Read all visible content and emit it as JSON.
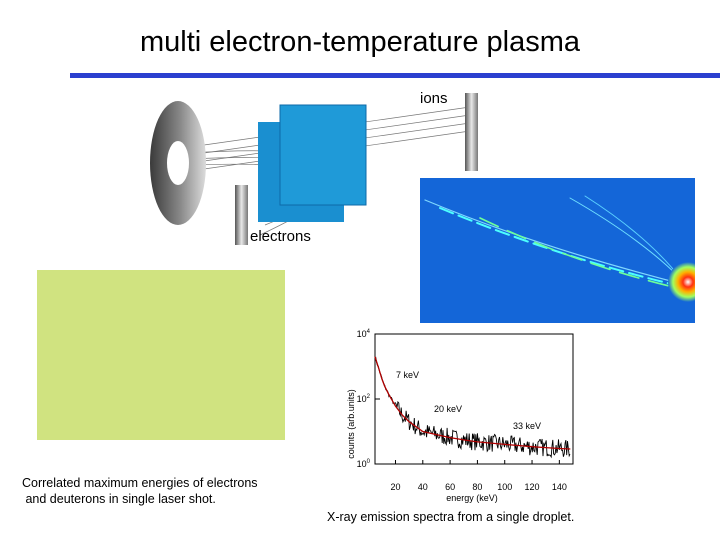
{
  "slide": {
    "title": "multi electron-temperature plasma",
    "ions_label": "ions",
    "electrons_label": "electrons",
    "left_caption": "Correlated maximum energies of electrons\n and deuterons in single laser shot.",
    "right_caption": "X-ray emission spectra from a single droplet.",
    "colors": {
      "title_rule": "#2b3fcf",
      "green_box": "#d0e380",
      "detector_plate": "#1a8fd0",
      "heatmap_bg": "#1466d8"
    }
  },
  "chart_data": {
    "type": "line",
    "xlabel": "energy (keV)",
    "ylabel": "counts (arb.units)",
    "x_ticks": [
      "20",
      "40",
      "60",
      "80",
      "100",
      "120",
      "140"
    ],
    "y_ticks": [
      {
        "base": "10",
        "exp": "4"
      },
      {
        "base": "10",
        "exp": "2"
      },
      {
        "base": "10",
        "exp": "0"
      }
    ],
    "y_scale": "log",
    "xlim": [
      5,
      150
    ],
    "ylim": [
      1,
      10000
    ],
    "annotations": [
      "7 keV",
      "20 keV",
      "33 keV"
    ],
    "series": [
      {
        "color": "#000000",
        "x": [
          5,
          8,
          10,
          12,
          15,
          20,
          25,
          30,
          40,
          50,
          60,
          70,
          80,
          90,
          100,
          110,
          120,
          130,
          140,
          148
        ],
        "y": [
          2000,
          800,
          420,
          250,
          140,
          60,
          32,
          20,
          10,
          8,
          6.5,
          5.5,
          4.8,
          4.4,
          4,
          3.7,
          3.4,
          3.2,
          3,
          2.9
        ]
      },
      {
        "color": "#b00000",
        "x": [
          5,
          8,
          10,
          12,
          15,
          20,
          25,
          30,
          40,
          50,
          60,
          70,
          80,
          90,
          100,
          110,
          120,
          130,
          140,
          148
        ],
        "y": [
          2000,
          800,
          420,
          250,
          140,
          60,
          32,
          20,
          10,
          8,
          6.5,
          5.5,
          4.8,
          4.4,
          4,
          3.7,
          3.4,
          3.2,
          3,
          2.9
        ]
      }
    ]
  }
}
